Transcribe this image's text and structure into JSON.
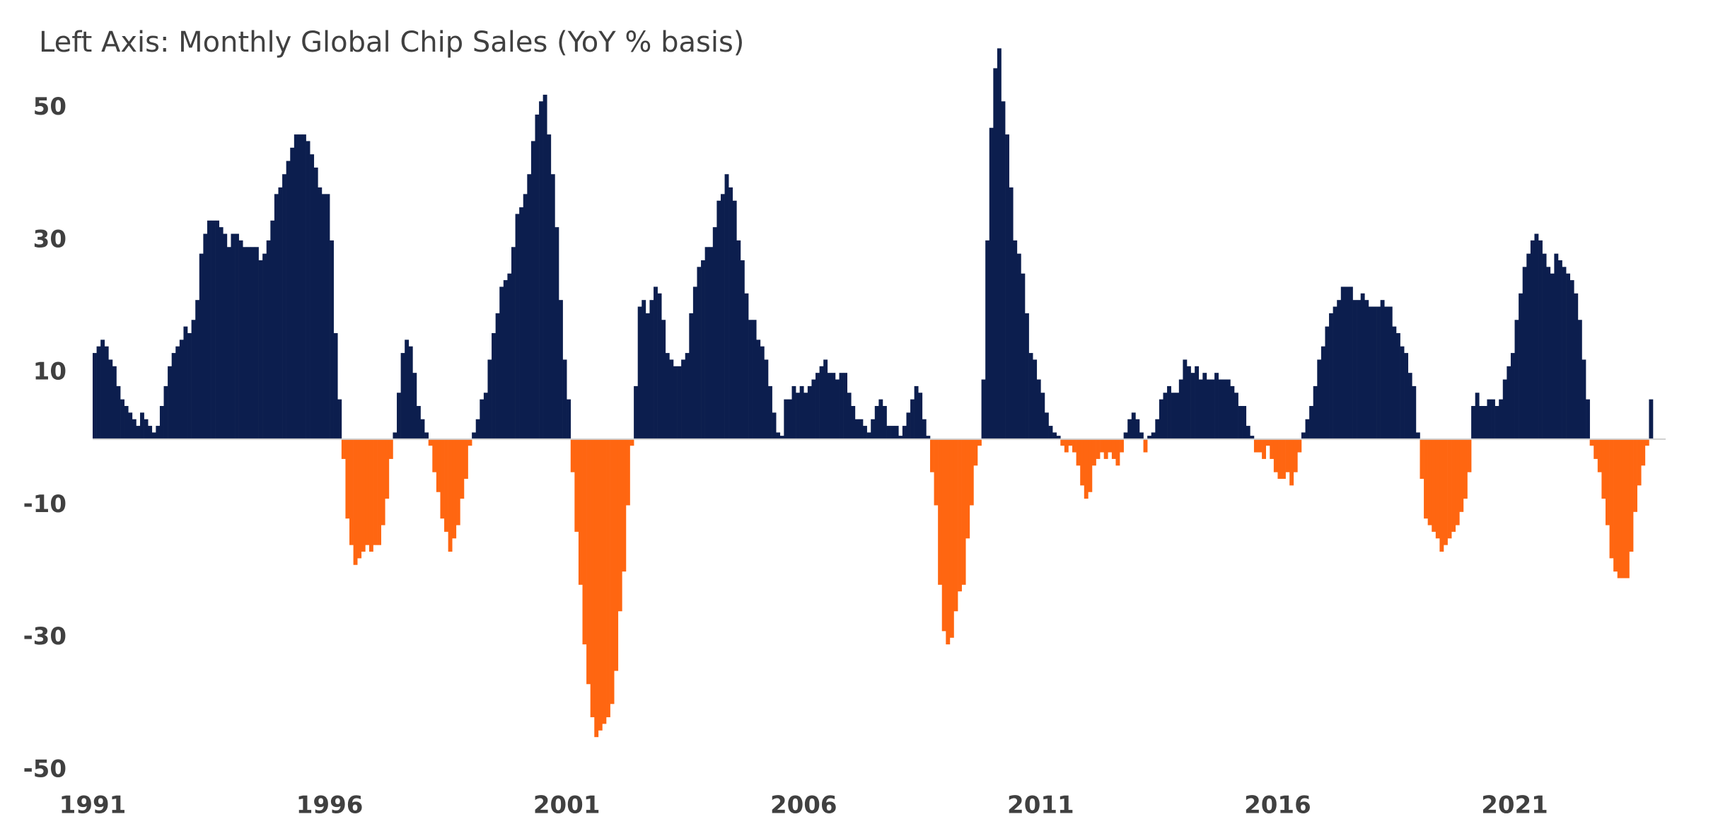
{
  "chart_data": {
    "type": "bar",
    "title": "Left Axis: Monthly Global Chip Sales (YoY % basis)",
    "categories": [
      "1991",
      null,
      null,
      null,
      null,
      null,
      null,
      null,
      null,
      null,
      null,
      null,
      null,
      null,
      null,
      null,
      null,
      null,
      null,
      null,
      null,
      null,
      null,
      null,
      null,
      null,
      null,
      null,
      null,
      null,
      null,
      null,
      null,
      null,
      null,
      null,
      null,
      null,
      null,
      null,
      null,
      null,
      null,
      null,
      null,
      null,
      null,
      null,
      null,
      null,
      null,
      null,
      null,
      null,
      null,
      null,
      null,
      null,
      null,
      null,
      "1996",
      null,
      null,
      null,
      null,
      null,
      null,
      null,
      null,
      null,
      null,
      null,
      null,
      null,
      null,
      null,
      null,
      null,
      null,
      null,
      null,
      null,
      null,
      null,
      null,
      null,
      null,
      null,
      null,
      null,
      null,
      null,
      null,
      null,
      null,
      null,
      null,
      null,
      null,
      null,
      null,
      null,
      null,
      null,
      null,
      null,
      null,
      null,
      null,
      null,
      null,
      null,
      null,
      null,
      null,
      null,
      null,
      null,
      null,
      null,
      "2001",
      null,
      null,
      null,
      null,
      null,
      null,
      null,
      null,
      null,
      null,
      null,
      null,
      null,
      null,
      null,
      null,
      null,
      null,
      null,
      null,
      null,
      null,
      null,
      null,
      null,
      null,
      null,
      null,
      null,
      null,
      null,
      null,
      null,
      null,
      null,
      null,
      null,
      null,
      null,
      null,
      null,
      null,
      null,
      null,
      null,
      null,
      null,
      null,
      null,
      null,
      null,
      null,
      null,
      null,
      null,
      null,
      null,
      null,
      null,
      "2006",
      null,
      null,
      null,
      null,
      null,
      null,
      null,
      null,
      null,
      null,
      null,
      null,
      null,
      null,
      null,
      null,
      null,
      null,
      null,
      null,
      null,
      null,
      null,
      null,
      null,
      null,
      null,
      null,
      null,
      null,
      null,
      null,
      null,
      null,
      null,
      null,
      null,
      null,
      null,
      null,
      null,
      null,
      null,
      null,
      null,
      null,
      null,
      null,
      null,
      null,
      null,
      null,
      null,
      null,
      null,
      null,
      null,
      null,
      null,
      "2011",
      null,
      null,
      null,
      null,
      null,
      null,
      null,
      null,
      null,
      null,
      null,
      null,
      null,
      null,
      null,
      null,
      null,
      null,
      null,
      null,
      null,
      null,
      null,
      null,
      null,
      null,
      null,
      null,
      null,
      null,
      null,
      null,
      null,
      null,
      null,
      null,
      null,
      null,
      null,
      null,
      null,
      null,
      null,
      null,
      null,
      null,
      null,
      null,
      null,
      null,
      null,
      null,
      null,
      null,
      null,
      null,
      null,
      null,
      null,
      "2016",
      null,
      null,
      null,
      null,
      null,
      null,
      null,
      null,
      null,
      null,
      null,
      null,
      null,
      null,
      null,
      null,
      null,
      null,
      null,
      null,
      null,
      null,
      null,
      null,
      null,
      null,
      null,
      null,
      null,
      null,
      null,
      null,
      null,
      null,
      null,
      null,
      null,
      null,
      null,
      null,
      null,
      null,
      null,
      null,
      null,
      null,
      null,
      null,
      null,
      null,
      null,
      null,
      null,
      null,
      null,
      null,
      null,
      null,
      null,
      "2021",
      null,
      null,
      null,
      null,
      null,
      null,
      null,
      null,
      null,
      null,
      null,
      null,
      null,
      null,
      null,
      null,
      null,
      null,
      null,
      null,
      null,
      null,
      null,
      null,
      null,
      null,
      null,
      null,
      null,
      null,
      null,
      null,
      null,
      null
    ],
    "values": [
      13,
      14,
      15,
      14,
      12,
      11,
      8,
      6,
      5,
      4,
      3,
      2,
      4,
      3,
      2,
      1,
      2,
      5,
      8,
      11,
      13,
      14,
      15,
      17,
      16,
      18,
      21,
      28,
      31,
      33,
      33,
      33,
      32,
      31,
      29,
      31,
      31,
      30,
      29,
      29,
      29,
      29,
      27,
      28,
      30,
      33,
      37,
      38,
      40,
      42,
      44,
      46,
      46,
      46,
      45,
      43,
      41,
      38,
      37,
      37,
      30,
      16,
      6,
      -3,
      -12,
      -16,
      -19,
      -18,
      -17,
      -16,
      -17,
      -16,
      -16,
      -13,
      -9,
      -3,
      1,
      7,
      13,
      15,
      14,
      10,
      5,
      3,
      1,
      -1,
      -5,
      -8,
      -12,
      -14,
      -17,
      -15,
      -13,
      -9,
      -6,
      -1,
      1,
      3,
      6,
      7,
      12,
      16,
      19,
      23,
      24,
      25,
      29,
      34,
      35,
      37,
      40,
      45,
      49,
      51,
      52,
      46,
      40,
      32,
      21,
      12,
      6,
      -5,
      -14,
      -22,
      -31,
      -37,
      -42,
      -45,
      -44,
      -43,
      -42,
      -40,
      -35,
      -26,
      -20,
      -10,
      -1,
      8,
      20,
      21,
      19,
      21,
      23,
      22,
      18,
      13,
      12,
      11,
      11,
      12,
      13,
      19,
      23,
      26,
      27,
      29,
      29,
      32,
      36,
      37,
      40,
      38,
      36,
      30,
      27,
      22,
      18,
      18,
      15,
      14,
      12,
      8,
      4,
      1,
      0.5,
      6,
      6,
      8,
      7,
      8,
      7,
      8,
      9,
      10,
      11,
      12,
      10,
      10,
      9,
      10,
      10,
      7,
      5,
      3,
      3,
      2,
      1,
      3,
      5,
      6,
      5,
      2,
      2,
      2,
      0.5,
      2,
      4,
      6,
      8,
      7,
      3,
      0.5,
      -5,
      -10,
      -22,
      -29,
      -31,
      -30,
      -26,
      -23,
      -22,
      -15,
      -10,
      -4,
      -1,
      9,
      30,
      47,
      56,
      59,
      51,
      46,
      38,
      30,
      28,
      25,
      19,
      13,
      12,
      9,
      7,
      4,
      2,
      1,
      0.5,
      -1,
      -2,
      -1,
      -2,
      -4,
      -7,
      -9,
      -8,
      -4,
      -3,
      -2,
      -3,
      -2,
      -3,
      -4,
      -2,
      1,
      3,
      4,
      3,
      1,
      -2,
      0.5,
      1,
      3,
      6,
      7,
      8,
      7,
      7,
      9,
      12,
      11,
      10,
      11,
      9,
      10,
      9,
      9,
      10,
      9,
      9,
      9,
      8,
      7,
      5,
      5,
      2,
      0.5,
      -2,
      -2,
      -3,
      -1,
      -3,
      -5,
      -6,
      -6,
      -5,
      -7,
      -5,
      -2,
      1,
      3,
      5,
      8,
      12,
      14,
      17,
      19,
      20,
      21,
      23,
      23,
      23,
      21,
      21,
      22,
      21,
      20,
      20,
      20,
      21,
      20,
      20,
      17,
      16,
      14,
      13,
      10,
      8,
      1,
      -6,
      -12,
      -13,
      -14,
      -15,
      -17,
      -16,
      -15,
      -14,
      -13,
      -11,
      -9,
      -5,
      5,
      7,
      5,
      5,
      6,
      6,
      5,
      6,
      9,
      11,
      13,
      18,
      22,
      26,
      28,
      30,
      31,
      30,
      28,
      26,
      25,
      28,
      27,
      26,
      25,
      24,
      22,
      18,
      12,
      6,
      -1,
      -3,
      -5,
      -9,
      -13,
      -18,
      -20,
      -21,
      -21,
      -21,
      -17,
      -11,
      -7,
      -4,
      -1,
      6
    ],
    "color": "#0c1e4e",
    "negative_color": "#ff6611",
    "ylim": [
      -50,
      60
    ],
    "yticks": [
      50,
      30,
      10,
      -10,
      -30,
      -50
    ],
    "grid": false
  }
}
